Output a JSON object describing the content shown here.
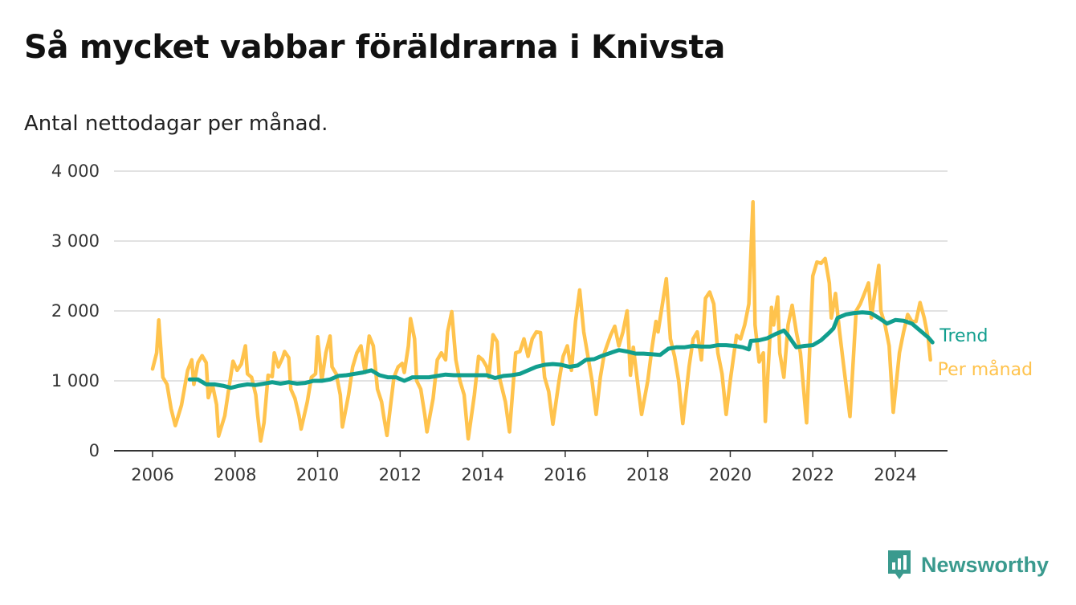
{
  "header": {
    "title": "Så mycket vabbar föräldrarna i Knivsta",
    "subtitle": "Antal nettodagar per månad."
  },
  "brand": {
    "name": "Newsworthy",
    "icon": "chart-bubble-icon",
    "color": "#3a9a8e"
  },
  "chart_data": {
    "type": "line",
    "title": "Så mycket vabbar föräldrarna i Knivsta",
    "subtitle": "Antal nettodagar per månad.",
    "xlabel": "",
    "ylabel": "",
    "xlim": [
      2005.6,
      2025.0
    ],
    "ylim": [
      0,
      4000
    ],
    "grid": true,
    "y_ticks": [
      {
        "value": 0,
        "label": "0"
      },
      {
        "value": 1000,
        "label": "1 000"
      },
      {
        "value": 2000,
        "label": "2 000"
      },
      {
        "value": 3000,
        "label": "3 000"
      },
      {
        "value": 4000,
        "label": "4 000"
      }
    ],
    "x_ticks": [
      {
        "value": 2006,
        "label": "2006"
      },
      {
        "value": 2008,
        "label": "2008"
      },
      {
        "value": 2010,
        "label": "2010"
      },
      {
        "value": 2012,
        "label": "2012"
      },
      {
        "value": 2014,
        "label": "2014"
      },
      {
        "value": 2016,
        "label": "2016"
      },
      {
        "value": 2018,
        "label": "2018"
      },
      {
        "value": 2020,
        "label": "2020"
      },
      {
        "value": 2022,
        "label": "2022"
      },
      {
        "value": 2024,
        "label": "2024"
      }
    ],
    "series": [
      {
        "name": "Per månad",
        "color": "#ffc34d",
        "start_year": 2006,
        "points": [
          [
            0.0,
            1170
          ],
          [
            0.1,
            1400
          ],
          [
            0.15,
            1870
          ],
          [
            0.25,
            1050
          ],
          [
            0.35,
            950
          ],
          [
            0.45,
            600
          ],
          [
            0.55,
            360
          ],
          [
            0.7,
            650
          ],
          [
            0.85,
            1150
          ],
          [
            0.95,
            1300
          ],
          [
            1.0,
            950
          ],
          [
            1.1,
            1260
          ],
          [
            1.2,
            1360
          ],
          [
            1.3,
            1260
          ],
          [
            1.35,
            760
          ],
          [
            1.45,
            950
          ],
          [
            1.55,
            660
          ],
          [
            1.6,
            210
          ],
          [
            1.75,
            500
          ],
          [
            1.85,
            900
          ],
          [
            1.95,
            1280
          ],
          [
            2.05,
            1150
          ],
          [
            2.15,
            1240
          ],
          [
            2.25,
            1500
          ],
          [
            2.3,
            1100
          ],
          [
            2.4,
            1050
          ],
          [
            2.5,
            800
          ],
          [
            2.55,
            500
          ],
          [
            2.62,
            140
          ],
          [
            2.7,
            400
          ],
          [
            2.8,
            1080
          ],
          [
            2.9,
            1060
          ],
          [
            2.95,
            1400
          ],
          [
            3.05,
            1200
          ],
          [
            3.15,
            1330
          ],
          [
            3.2,
            1420
          ],
          [
            3.3,
            1330
          ],
          [
            3.35,
            880
          ],
          [
            3.45,
            750
          ],
          [
            3.55,
            500
          ],
          [
            3.6,
            310
          ],
          [
            3.75,
            700
          ],
          [
            3.85,
            1050
          ],
          [
            3.95,
            1100
          ],
          [
            4.0,
            1630
          ],
          [
            4.1,
            1000
          ],
          [
            4.2,
            1400
          ],
          [
            4.3,
            1640
          ],
          [
            4.35,
            1200
          ],
          [
            4.45,
            1100
          ],
          [
            4.55,
            800
          ],
          [
            4.6,
            340
          ],
          [
            4.75,
            800
          ],
          [
            4.85,
            1200
          ],
          [
            4.95,
            1400
          ],
          [
            5.05,
            1500
          ],
          [
            5.15,
            1120
          ],
          [
            5.25,
            1640
          ],
          [
            5.35,
            1500
          ],
          [
            5.45,
            880
          ],
          [
            5.55,
            700
          ],
          [
            5.6,
            500
          ],
          [
            5.68,
            220
          ],
          [
            5.85,
            1050
          ],
          [
            5.95,
            1200
          ],
          [
            6.05,
            1250
          ],
          [
            6.1,
            1120
          ],
          [
            6.2,
            1500
          ],
          [
            6.25,
            1890
          ],
          [
            6.35,
            1600
          ],
          [
            6.4,
            1000
          ],
          [
            6.5,
            880
          ],
          [
            6.6,
            500
          ],
          [
            6.65,
            270
          ],
          [
            6.8,
            750
          ],
          [
            6.9,
            1300
          ],
          [
            7.0,
            1400
          ],
          [
            7.1,
            1300
          ],
          [
            7.15,
            1700
          ],
          [
            7.25,
            1990
          ],
          [
            7.35,
            1300
          ],
          [
            7.45,
            1000
          ],
          [
            7.55,
            800
          ],
          [
            7.65,
            170
          ],
          [
            7.8,
            800
          ],
          [
            7.9,
            1350
          ],
          [
            8.0,
            1300
          ],
          [
            8.1,
            1200
          ],
          [
            8.15,
            1050
          ],
          [
            8.25,
            1660
          ],
          [
            8.35,
            1560
          ],
          [
            8.4,
            1060
          ],
          [
            8.55,
            700
          ],
          [
            8.65,
            270
          ],
          [
            8.8,
            1400
          ],
          [
            8.9,
            1420
          ],
          [
            9.0,
            1600
          ],
          [
            9.1,
            1350
          ],
          [
            9.2,
            1600
          ],
          [
            9.3,
            1700
          ],
          [
            9.4,
            1690
          ],
          [
            9.5,
            1050
          ],
          [
            9.6,
            850
          ],
          [
            9.7,
            380
          ],
          [
            9.85,
            1000
          ],
          [
            9.95,
            1350
          ],
          [
            10.05,
            1500
          ],
          [
            10.15,
            1150
          ],
          [
            10.25,
            1850
          ],
          [
            10.35,
            2300
          ],
          [
            10.45,
            1700
          ],
          [
            10.55,
            1350
          ],
          [
            10.65,
            1000
          ],
          [
            10.75,
            520
          ],
          [
            10.85,
            1050
          ],
          [
            10.95,
            1400
          ],
          [
            11.1,
            1650
          ],
          [
            11.2,
            1780
          ],
          [
            11.3,
            1500
          ],
          [
            11.4,
            1700
          ],
          [
            11.5,
            2000
          ],
          [
            11.58,
            1080
          ],
          [
            11.65,
            1480
          ],
          [
            11.75,
            1000
          ],
          [
            11.85,
            520
          ],
          [
            12.0,
            1000
          ],
          [
            12.1,
            1460
          ],
          [
            12.2,
            1850
          ],
          [
            12.25,
            1700
          ],
          [
            12.35,
            2080
          ],
          [
            12.45,
            2460
          ],
          [
            12.55,
            1600
          ],
          [
            12.65,
            1350
          ],
          [
            12.75,
            1000
          ],
          [
            12.85,
            390
          ],
          [
            13.0,
            1200
          ],
          [
            13.1,
            1600
          ],
          [
            13.2,
            1700
          ],
          [
            13.3,
            1300
          ],
          [
            13.4,
            2180
          ],
          [
            13.5,
            2270
          ],
          [
            13.6,
            2100
          ],
          [
            13.7,
            1400
          ],
          [
            13.8,
            1100
          ],
          [
            13.9,
            520
          ],
          [
            14.0,
            1000
          ],
          [
            14.15,
            1650
          ],
          [
            14.25,
            1600
          ],
          [
            14.35,
            1800
          ],
          [
            14.45,
            2100
          ],
          [
            14.55,
            3560
          ],
          [
            14.6,
            1800
          ],
          [
            14.7,
            1270
          ],
          [
            14.8,
            1400
          ],
          [
            14.85,
            420
          ],
          [
            15.0,
            2050
          ],
          [
            15.05,
            1800
          ],
          [
            15.15,
            2200
          ],
          [
            15.2,
            1400
          ],
          [
            15.3,
            1050
          ],
          [
            15.4,
            1800
          ],
          [
            15.5,
            2080
          ],
          [
            15.6,
            1700
          ],
          [
            15.7,
            1400
          ],
          [
            15.85,
            400
          ],
          [
            16.0,
            2500
          ],
          [
            16.1,
            2700
          ],
          [
            16.2,
            2680
          ],
          [
            16.3,
            2750
          ],
          [
            16.4,
            2400
          ],
          [
            16.45,
            1900
          ],
          [
            16.55,
            2250
          ],
          [
            16.65,
            1700
          ],
          [
            16.75,
            1200
          ],
          [
            16.9,
            490
          ],
          [
            17.05,
            2000
          ],
          [
            17.15,
            2100
          ],
          [
            17.25,
            2250
          ],
          [
            17.35,
            2400
          ],
          [
            17.42,
            1900
          ],
          [
            17.5,
            2250
          ],
          [
            17.6,
            2650
          ],
          [
            17.65,
            2000
          ],
          [
            17.75,
            1800
          ],
          [
            17.85,
            1500
          ],
          [
            17.95,
            550
          ],
          [
            18.1,
            1400
          ],
          [
            18.2,
            1700
          ],
          [
            18.3,
            1950
          ],
          [
            18.4,
            1850
          ],
          [
            18.5,
            1850
          ],
          [
            18.6,
            2120
          ],
          [
            18.7,
            1900
          ],
          [
            18.8,
            1600
          ],
          [
            18.85,
            1300
          ]
        ]
      },
      {
        "name": "Trend",
        "color": "#119e8e",
        "start_year": 2006,
        "points": [
          [
            0.9,
            1020
          ],
          [
            1.0,
            1020
          ],
          [
            1.1,
            1020
          ],
          [
            1.3,
            950
          ],
          [
            1.5,
            950
          ],
          [
            1.7,
            930
          ],
          [
            1.9,
            900
          ],
          [
            2.1,
            930
          ],
          [
            2.3,
            950
          ],
          [
            2.5,
            940
          ],
          [
            2.7,
            960
          ],
          [
            2.9,
            980
          ],
          [
            3.1,
            960
          ],
          [
            3.3,
            980
          ],
          [
            3.5,
            960
          ],
          [
            3.7,
            970
          ],
          [
            3.9,
            1000
          ],
          [
            4.1,
            1000
          ],
          [
            4.3,
            1020
          ],
          [
            4.5,
            1070
          ],
          [
            4.7,
            1080
          ],
          [
            4.9,
            1100
          ],
          [
            5.1,
            1120
          ],
          [
            5.3,
            1150
          ],
          [
            5.5,
            1080
          ],
          [
            5.7,
            1050
          ],
          [
            5.9,
            1050
          ],
          [
            6.1,
            1000
          ],
          [
            6.3,
            1050
          ],
          [
            6.5,
            1050
          ],
          [
            6.7,
            1050
          ],
          [
            6.9,
            1070
          ],
          [
            7.1,
            1090
          ],
          [
            7.3,
            1080
          ],
          [
            7.5,
            1080
          ],
          [
            7.7,
            1080
          ],
          [
            7.9,
            1080
          ],
          [
            8.1,
            1080
          ],
          [
            8.3,
            1040
          ],
          [
            8.5,
            1070
          ],
          [
            8.7,
            1080
          ],
          [
            8.9,
            1100
          ],
          [
            9.1,
            1150
          ],
          [
            9.3,
            1200
          ],
          [
            9.5,
            1230
          ],
          [
            9.7,
            1240
          ],
          [
            9.9,
            1230
          ],
          [
            10.1,
            1200
          ],
          [
            10.3,
            1220
          ],
          [
            10.5,
            1300
          ],
          [
            10.7,
            1310
          ],
          [
            10.9,
            1360
          ],
          [
            11.1,
            1400
          ],
          [
            11.3,
            1440
          ],
          [
            11.5,
            1420
          ],
          [
            11.7,
            1390
          ],
          [
            11.9,
            1390
          ],
          [
            12.1,
            1380
          ],
          [
            12.3,
            1370
          ],
          [
            12.5,
            1460
          ],
          [
            12.7,
            1480
          ],
          [
            12.9,
            1480
          ],
          [
            13.1,
            1500
          ],
          [
            13.3,
            1490
          ],
          [
            13.5,
            1490
          ],
          [
            13.7,
            1510
          ],
          [
            13.9,
            1510
          ],
          [
            14.1,
            1500
          ],
          [
            14.3,
            1480
          ],
          [
            14.45,
            1450
          ],
          [
            14.5,
            1570
          ],
          [
            14.7,
            1580
          ],
          [
            14.9,
            1610
          ],
          [
            15.1,
            1670
          ],
          [
            15.3,
            1720
          ],
          [
            15.4,
            1650
          ],
          [
            15.6,
            1480
          ],
          [
            15.8,
            1500
          ],
          [
            16.0,
            1510
          ],
          [
            16.2,
            1580
          ],
          [
            16.4,
            1690
          ],
          [
            16.5,
            1750
          ],
          [
            16.6,
            1900
          ],
          [
            16.8,
            1950
          ],
          [
            17.0,
            1970
          ],
          [
            17.2,
            1980
          ],
          [
            17.4,
            1970
          ],
          [
            17.6,
            1900
          ],
          [
            17.8,
            1820
          ],
          [
            18.0,
            1870
          ],
          [
            18.2,
            1860
          ],
          [
            18.4,
            1820
          ],
          [
            18.6,
            1720
          ],
          [
            18.8,
            1620
          ],
          [
            18.9,
            1550
          ]
        ]
      }
    ]
  }
}
